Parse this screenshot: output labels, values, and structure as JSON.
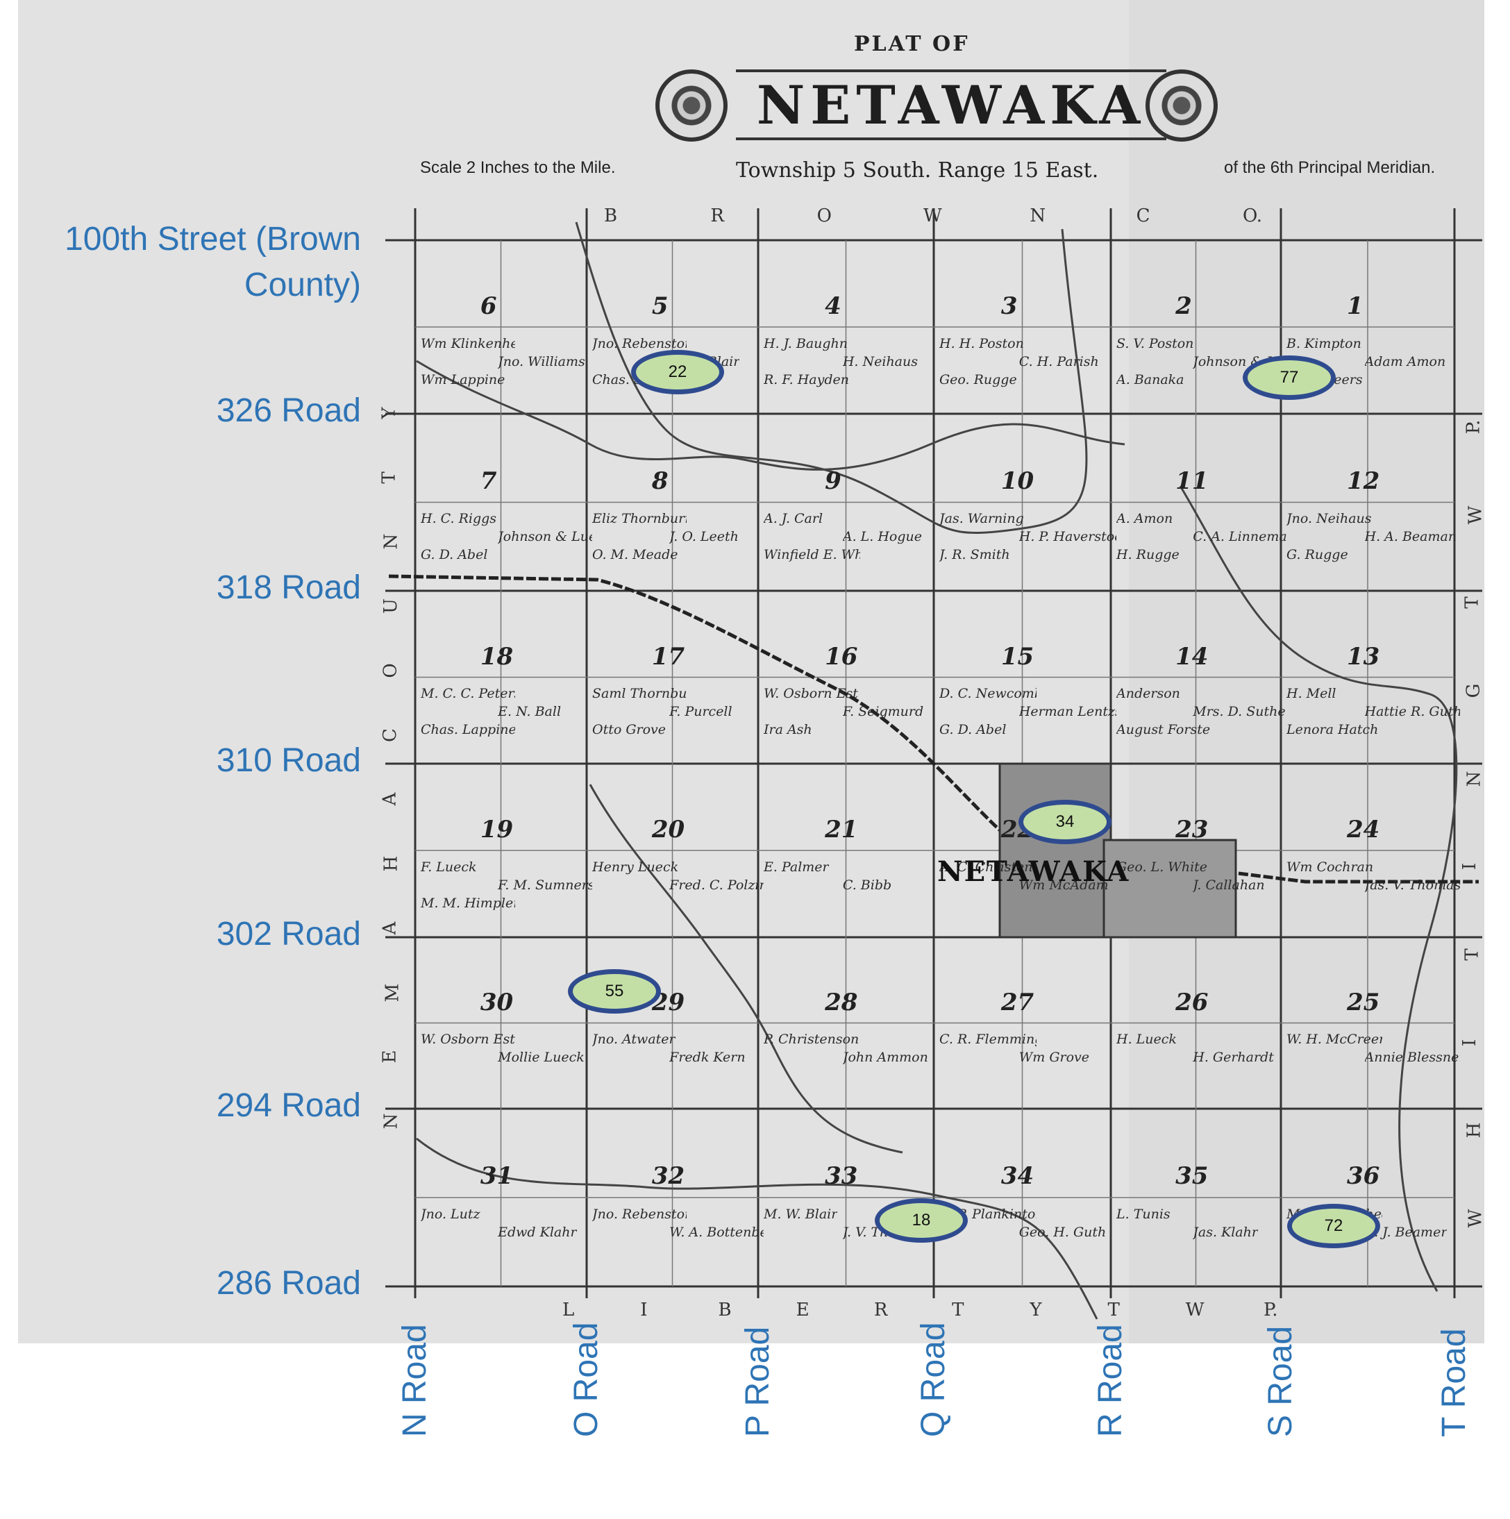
{
  "header": {
    "plat_of": "PLAT OF",
    "title": "NETAWAKA",
    "scale": "Scale 2 Inches to the Mile.",
    "township": "Township  5  South.  Range  15  East.",
    "meridian": "of the 6th Principal Meridian."
  },
  "borders": {
    "top": [
      "B",
      "R",
      "O",
      "W",
      "N",
      "C",
      "O."
    ],
    "bottom": [
      "L",
      "I",
      "B",
      "E",
      "R",
      "T",
      "Y",
      "T",
      "W",
      "P."
    ],
    "left": [
      "N",
      "E",
      "M",
      "A",
      "H",
      "A",
      "C",
      "O",
      "U",
      "N",
      "T",
      "Y"
    ],
    "right": [
      "W",
      "H",
      "I",
      "T",
      "I",
      "N",
      "G",
      "T",
      "W",
      "P."
    ]
  },
  "road_labels": {
    "horizontal": [
      "100th Street (Brown County)",
      "326 Road",
      "318 Road",
      "310 Road",
      "302 Road",
      "294 Road",
      "286 Road"
    ],
    "vertical": [
      "N Road",
      "O Road",
      "P Road",
      "Q Road",
      "R Road",
      "S Road",
      "T Road"
    ]
  },
  "markers": [
    "22",
    "77",
    "34",
    "55",
    "18",
    "72"
  ],
  "town_name": "NETAWAKA",
  "sections": [
    "1",
    "2",
    "3",
    "4",
    "5",
    "6",
    "7",
    "8",
    "9",
    "10",
    "11",
    "12",
    "13",
    "14",
    "15",
    "16",
    "17",
    "18",
    "19",
    "20",
    "21",
    "22",
    "23",
    "24",
    "25",
    "26",
    "27",
    "28",
    "29",
    "30",
    "31",
    "32",
    "33",
    "34",
    "35",
    "36"
  ],
  "owners": [
    "Wm Klinkenhead",
    "Jno. Rebenstorf Est",
    "H. J. Baughn",
    "H. H. Poston",
    "S. V. Poston",
    "B. Kimpton",
    "H. C. Riggs",
    "Eliz Thornburrow",
    "A. J. Carl",
    "Jas. Warning",
    "A. Amon",
    "Jno. Neihaus",
    "M. C. C. Peterson",
    "Saml Thornburrow",
    "W. Osborn Est",
    "D. C. Newcomb",
    "Anderson",
    "H. Mell",
    "F. Lueck",
    "Henry Lueck",
    "E. Palmer",
    "A. C. Christensen",
    "Geo. L. White",
    "Wm Cochran",
    "W. Osborn Est",
    "Jno. Atwater",
    "P. Christenson",
    "C. R. Flemming",
    "H. Lueck",
    "W. H. McCreery",
    "Jno. Lutz",
    "Jno. Rebenstorf Est",
    "M. W. Blair",
    "C. P. Plankinton",
    "L. Tunis",
    "Meyers & Shedd",
    "Jno. Williams",
    "R. W. Blair",
    "H. Neihaus",
    "C. H. Parish",
    "Johnson & Lueck",
    "Adam Amon",
    "Johnson & Lueck",
    "J. O. Leeth",
    "A. L. Hogue",
    "H. P. Haverstock",
    "C. A. Linnemann",
    "H. A. Beaman",
    "E. N. Ball",
    "F. Purcell",
    "F. Seigmurd",
    "Herman Lentzsch",
    "Mrs. D. Sutherland",
    "Hattie R. Guth",
    "F. M. Sumners",
    "Fred. C. Polzin",
    "C. Bibb",
    "Wm McAdam",
    "J. Callahan",
    "Jas. V. Thomas",
    "Mollie Lueck",
    "Fredk Kern",
    "John Ammon",
    "Wm Grove",
    "H. Gerhardt",
    "Annie Blessner",
    "Edwd Klahr",
    "W. A. Bottenberg",
    "J. V. Thomas",
    "Geo. H. Guth",
    "Jas. Klahr",
    "A. J. Beamer",
    "Wm Lappine",
    "Chas. Starrin",
    "R. F. Hayden",
    "Geo. Rugge",
    "A. Banaka",
    "Fred Heers",
    "G. D. Abel",
    "O. M. Meade",
    "Winfield E. Whitcraft",
    "J. R. Smith",
    "H. Rugge",
    "G. Rugge",
    "Chas. Lappine",
    "Otto Grove",
    "Ira Ash",
    "G. D. Abel",
    "August Forster",
    "Lenora Hatch",
    "M. M. Himpler"
  ]
}
